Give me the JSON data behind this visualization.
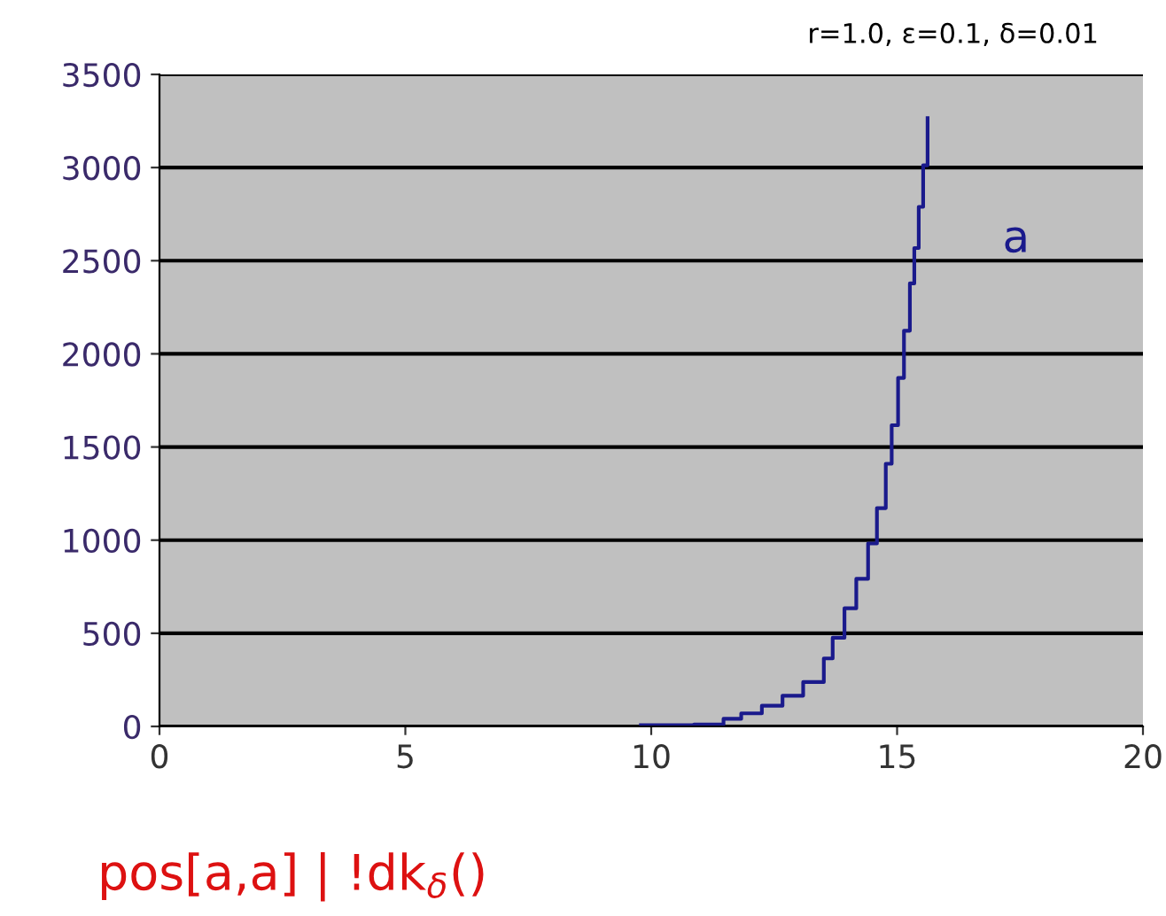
{
  "chart_data": {
    "type": "step",
    "xlabel": "pos[a,a] | !dk$_{δ}$()",
    "annotations": [
      "r=1.0, ε=0.1, δ=0.01"
    ],
    "series": [
      {
        "name": "a",
        "color": "#1a1a8c",
        "x": [
          9.79,
          10.87,
          11.47,
          11.83,
          12.25,
          12.67,
          13.09,
          13.51,
          13.69,
          13.93,
          14.17,
          14.41,
          14.59,
          14.77,
          14.89,
          15.02,
          15.14,
          15.26,
          15.35,
          15.44,
          15.53,
          15.62
        ],
        "values": [
          7,
          10,
          41,
          70,
          111,
          165,
          238,
          365,
          476,
          634,
          792,
          982,
          1172,
          1410,
          1617,
          1871,
          2124,
          2378,
          2568,
          2789,
          3012,
          3265
        ]
      }
    ],
    "xlim": [
      0,
      20
    ],
    "xticks": [
      0,
      5,
      10,
      15,
      20
    ],
    "ylim": [
      0,
      3500
    ],
    "yticks": [
      0,
      500,
      1000,
      1500,
      2000,
      2500,
      3000,
      3500
    ],
    "grid": "y",
    "legend": false
  }
}
